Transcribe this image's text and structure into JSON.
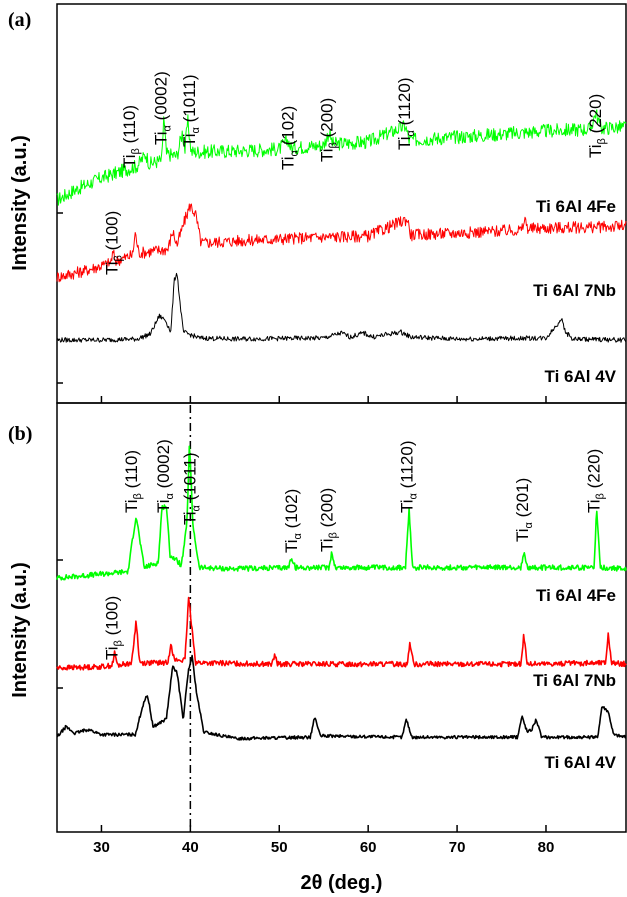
{
  "chart_data": [
    {
      "type": "line",
      "panel_label": "(a)",
      "ylabel": "Intensity (a.u.)",
      "xlabel": "",
      "xlim": [
        25,
        89
      ],
      "x_ticks": [
        30,
        40,
        50,
        60,
        70,
        80
      ],
      "grid": false,
      "series": [
        {
          "name": "Ti 6Al 4Fe",
          "color": "#00ff00",
          "noise": 0.35,
          "points": [
            [
              25,
              0.0
            ],
            [
              27,
              0.5
            ],
            [
              30,
              1.1
            ],
            [
              33,
              1.55
            ],
            [
              34,
              1.7
            ],
            [
              35,
              2.3
            ],
            [
              35.4,
              1.8
            ],
            [
              36.8,
              2.0
            ],
            [
              37,
              4.2
            ],
            [
              37.3,
              2.3
            ],
            [
              38.5,
              2.2
            ],
            [
              39.1,
              3.4
            ],
            [
              39.4,
              2.5
            ],
            [
              39.7,
              4.0
            ],
            [
              40.1,
              2.4
            ],
            [
              45,
              2.45
            ],
            [
              50,
              2.55
            ],
            [
              51,
              3.0
            ],
            [
              51.3,
              2.6
            ],
            [
              55,
              2.75
            ],
            [
              55.6,
              3.4
            ],
            [
              56,
              2.8
            ],
            [
              60,
              2.9
            ],
            [
              64.2,
              3.7
            ],
            [
              64.6,
              3.0
            ],
            [
              70,
              3.15
            ],
            [
              75,
              3.3
            ],
            [
              80,
              3.45
            ],
            [
              85,
              3.55
            ],
            [
              85.6,
              4.4
            ],
            [
              86.2,
              3.6
            ],
            [
              89,
              3.65
            ]
          ]
        },
        {
          "name": "Ti 6Al 7Nb",
          "color": "#ff0000",
          "noise": 0.3,
          "points": [
            [
              25,
              0.0
            ],
            [
              28,
              0.3
            ],
            [
              31,
              0.7
            ],
            [
              31.3,
              1.2
            ],
            [
              31.6,
              0.8
            ],
            [
              33.5,
              1.1
            ],
            [
              33.8,
              2.2
            ],
            [
              34.2,
              1.2
            ],
            [
              37.5,
              1.4
            ],
            [
              38,
              2.3
            ],
            [
              38.5,
              1.6
            ],
            [
              39.5,
              3.0
            ],
            [
              40,
              3.6
            ],
            [
              40.6,
              3.1
            ],
            [
              41.2,
              1.7
            ],
            [
              45,
              1.8
            ],
            [
              50,
              1.9
            ],
            [
              55,
              2.0
            ],
            [
              60,
              2.05
            ],
            [
              64.4,
              2.9
            ],
            [
              64.8,
              2.1
            ],
            [
              70,
              2.2
            ],
            [
              77.3,
              2.35
            ],
            [
              77.6,
              2.9
            ],
            [
              78,
              2.4
            ],
            [
              80,
              2.45
            ],
            [
              86,
              2.5
            ],
            [
              89,
              2.55
            ]
          ]
        },
        {
          "name": "Ti 6Al 4V",
          "color": "#000000",
          "noise": 0.12,
          "points": [
            [
              25,
              0.6
            ],
            [
              30,
              0.6
            ],
            [
              34,
              0.65
            ],
            [
              35.5,
              0.9
            ],
            [
              36.5,
              1.8
            ],
            [
              37.2,
              1.6
            ],
            [
              37.8,
              1.0
            ],
            [
              38.2,
              3.6
            ],
            [
              38.5,
              4.0
            ],
            [
              38.8,
              2.6
            ],
            [
              39.2,
              1.0
            ],
            [
              41,
              0.7
            ],
            [
              45,
              0.65
            ],
            [
              55,
              0.7
            ],
            [
              57,
              0.95
            ],
            [
              58,
              0.75
            ],
            [
              59.5,
              0.95
            ],
            [
              60.5,
              0.75
            ],
            [
              63.7,
              1.0
            ],
            [
              64.8,
              0.75
            ],
            [
              70,
              0.65
            ],
            [
              80,
              0.7
            ],
            [
              81.3,
              1.4
            ],
            [
              81.7,
              1.7
            ],
            [
              82.2,
              1.0
            ],
            [
              83,
              0.65
            ],
            [
              89,
              0.6
            ]
          ]
        }
      ],
      "annotations": [
        {
          "phase": "Ti",
          "greek": "β",
          "hkl": "(110)"
        },
        {
          "phase": "Ti",
          "greek": "α",
          "hkl": "(0002)"
        },
        {
          "phase": "Ti",
          "greek": "α",
          "hkl": "(1011)"
        },
        {
          "phase": "Ti",
          "greek": "α",
          "hkl": "(102)"
        },
        {
          "phase": "Ti",
          "greek": "β",
          "hkl": "(200)"
        },
        {
          "phase": "Ti",
          "greek": "α",
          "hkl": "(1120)"
        },
        {
          "phase": "Ti",
          "greek": "β",
          "hkl": "(220)"
        },
        {
          "phase": "Ti",
          "greek": "β",
          "hkl": "(100)"
        }
      ]
    },
    {
      "type": "line",
      "panel_label": "(b)",
      "ylabel": "Intensity (a.u.)",
      "xlabel": "2θ (deg.)",
      "xlim": [
        25,
        89
      ],
      "x_ticks": [
        30,
        40,
        50,
        60,
        70,
        80
      ],
      "reference_line_x": 40,
      "grid": false,
      "series": [
        {
          "name": "Ti 6Al 4Fe",
          "color": "#00ff00",
          "noise": 0.1,
          "points": [
            [
              25,
              0.0
            ],
            [
              30,
              0.15
            ],
            [
              33,
              0.25
            ],
            [
              33.5,
              1.5
            ],
            [
              33.9,
              2.4
            ],
            [
              34.3,
              1.5
            ],
            [
              34.8,
              0.4
            ],
            [
              36.4,
              0.6
            ],
            [
              36.8,
              2.7
            ],
            [
              37.3,
              2.8
            ],
            [
              37.7,
              0.9
            ],
            [
              39,
              0.5
            ],
            [
              39.6,
              2.0
            ],
            [
              39.9,
              5.2
            ],
            [
              40.3,
              2.0
            ],
            [
              41,
              0.4
            ],
            [
              45,
              0.35
            ],
            [
              51,
              0.4
            ],
            [
              51.4,
              0.8
            ],
            [
              51.8,
              0.4
            ],
            [
              55.6,
              0.4
            ],
            [
              55.9,
              1.0
            ],
            [
              56.3,
              0.4
            ],
            [
              64.2,
              0.4
            ],
            [
              64.6,
              2.6
            ],
            [
              65,
              0.4
            ],
            [
              77.2,
              0.4
            ],
            [
              77.5,
              1.0
            ],
            [
              77.9,
              0.4
            ],
            [
              85.4,
              0.4
            ],
            [
              85.7,
              2.6
            ],
            [
              86.1,
              0.4
            ],
            [
              89,
              0.35
            ]
          ]
        },
        {
          "name": "Ti 6Al 7Nb",
          "color": "#ff0000",
          "noise": 0.1,
          "points": [
            [
              25,
              0.0
            ],
            [
              30,
              0.05
            ],
            [
              31.2,
              0.1
            ],
            [
              31.5,
              0.6
            ],
            [
              31.8,
              0.1
            ],
            [
              33.4,
              0.2
            ],
            [
              33.9,
              1.8
            ],
            [
              34.3,
              0.2
            ],
            [
              37.5,
              0.2
            ],
            [
              37.8,
              1.0
            ],
            [
              38.2,
              0.3
            ],
            [
              39.4,
              0.3
            ],
            [
              39.8,
              2.7
            ],
            [
              40.2,
              1.5
            ],
            [
              40.6,
              0.2
            ],
            [
              49.2,
              0.15
            ],
            [
              49.5,
              0.5
            ],
            [
              49.8,
              0.15
            ],
            [
              64.4,
              0.15
            ],
            [
              64.7,
              1.0
            ],
            [
              65.1,
              0.15
            ],
            [
              77.2,
              0.15
            ],
            [
              77.5,
              1.3
            ],
            [
              77.9,
              0.15
            ],
            [
              86.7,
              0.2
            ],
            [
              87,
              1.3
            ],
            [
              87.4,
              0.2
            ],
            [
              89,
              0.15
            ]
          ]
        },
        {
          "name": "Ti 6Al 4V",
          "color": "#000000",
          "noise": 0.06,
          "points": [
            [
              25,
              0.3
            ],
            [
              26,
              0.7
            ],
            [
              27,
              0.45
            ],
            [
              28.5,
              0.6
            ],
            [
              30,
              0.4
            ],
            [
              33.8,
              0.4
            ],
            [
              34.8,
              1.7
            ],
            [
              35.2,
              1.9
            ],
            [
              35.8,
              0.7
            ],
            [
              37.3,
              1.0
            ],
            [
              38,
              3.0
            ],
            [
              38.5,
              2.8
            ],
            [
              39.2,
              1.0
            ],
            [
              39.8,
              2.9
            ],
            [
              40.2,
              3.4
            ],
            [
              40.7,
              2.0
            ],
            [
              41.5,
              0.5
            ],
            [
              45,
              0.25
            ],
            [
              53.5,
              0.3
            ],
            [
              54,
              1.1
            ],
            [
              54.6,
              0.35
            ],
            [
              63.8,
              0.3
            ],
            [
              64.3,
              1.0
            ],
            [
              64.9,
              0.3
            ],
            [
              76.8,
              0.3
            ],
            [
              77.3,
              1.1
            ],
            [
              77.9,
              0.5
            ],
            [
              78.4,
              0.6
            ],
            [
              78.9,
              1.0
            ],
            [
              79.5,
              0.3
            ],
            [
              85.8,
              0.3
            ],
            [
              86.3,
              1.5
            ],
            [
              87,
              1.3
            ],
            [
              87.6,
              0.4
            ],
            [
              89,
              0.3
            ]
          ]
        }
      ],
      "annotations": [
        {
          "phase": "Ti",
          "greek": "β",
          "hkl": "(110)"
        },
        {
          "phase": "Ti",
          "greek": "α",
          "hkl": "(0002)"
        },
        {
          "phase": "Ti",
          "greek": "α",
          "hkl": "(1011)"
        },
        {
          "phase": "Ti",
          "greek": "α",
          "hkl": "(102)"
        },
        {
          "phase": "Ti",
          "greek": "β",
          "hkl": "(200)"
        },
        {
          "phase": "Ti",
          "greek": "α",
          "hkl": "(1120)"
        },
        {
          "phase": "Ti",
          "greek": "α",
          "hkl": "(201)"
        },
        {
          "phase": "Ti",
          "greek": "β",
          "hkl": "(220)"
        },
        {
          "phase": "Ti",
          "greek": "β",
          "hkl": "(100)"
        }
      ]
    }
  ]
}
